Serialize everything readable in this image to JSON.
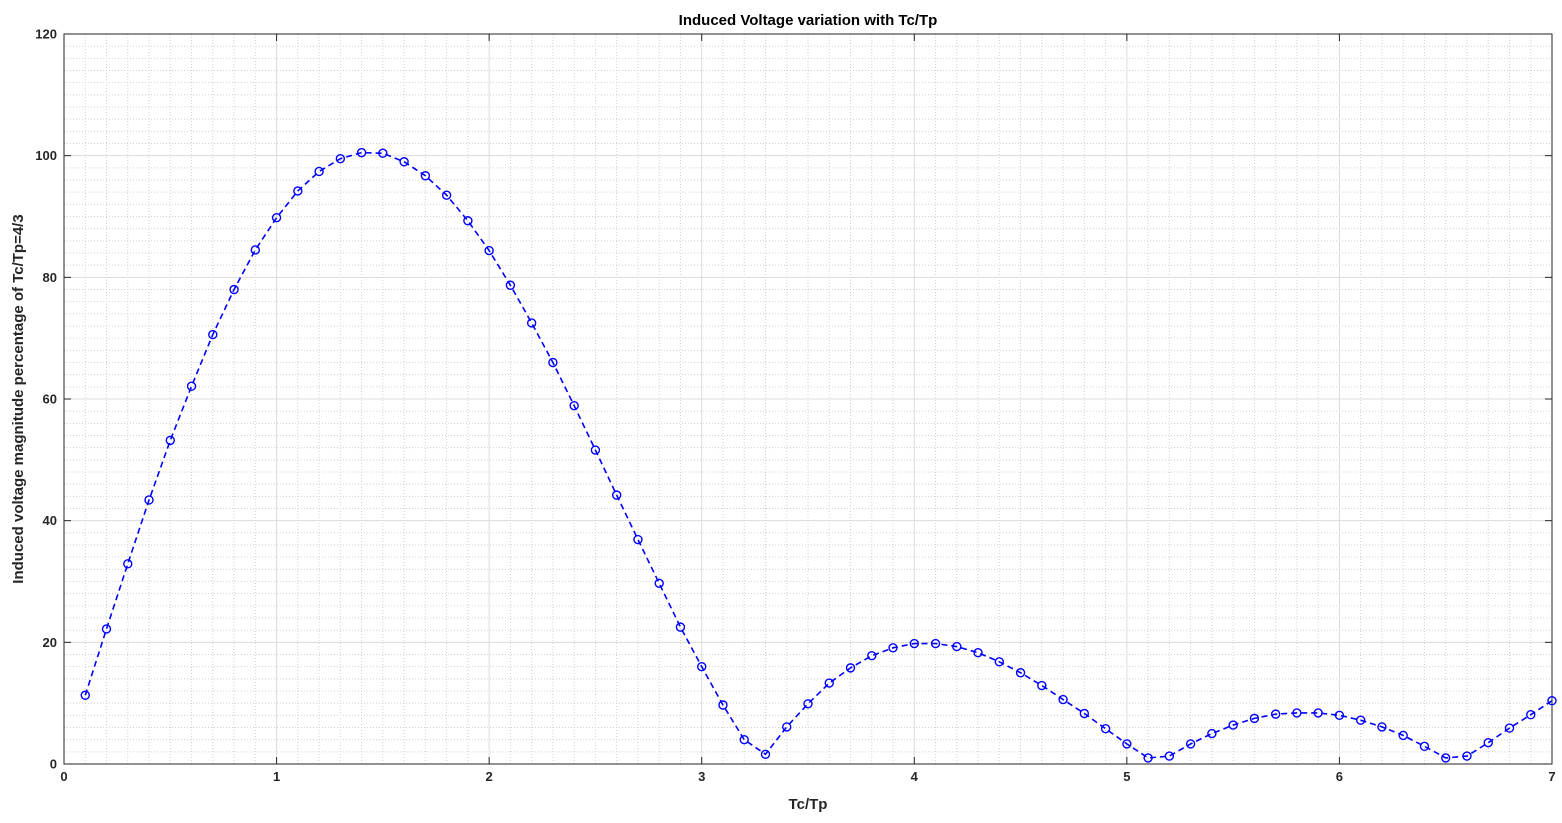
{
  "chart_data": {
    "type": "line",
    "title": "Induced Voltage variation with Tc/Tp",
    "xlabel": "Tc/Tp",
    "ylabel": "Induced voltage magnitude percentage of Tc/Tp=4/3",
    "xlim": [
      0,
      7
    ],
    "ylim": [
      0,
      120
    ],
    "xticks": [
      "0",
      "1",
      "2",
      "3",
      "4",
      "5",
      "6",
      "7"
    ],
    "yticks": [
      "0",
      "20",
      "40",
      "60",
      "80",
      "100",
      "120"
    ],
    "grid": true,
    "minor_grid": true,
    "legend": "none",
    "line_style": "dashed",
    "marker": "circle",
    "color": "#0000ff",
    "series": [
      {
        "x": [
          0.1,
          0.2,
          0.3,
          0.4,
          0.5,
          0.6,
          0.7,
          0.8,
          0.9,
          1.0,
          1.1,
          1.2,
          1.3,
          1.4,
          1.5,
          1.6,
          1.7,
          1.8,
          1.9,
          2.0,
          2.1,
          2.2,
          2.3,
          2.4,
          2.5,
          2.6,
          2.7,
          2.8,
          2.9,
          3.0,
          3.1,
          3.2,
          3.3,
          3.4,
          3.5,
          3.6,
          3.7,
          3.8,
          3.9,
          4.0,
          4.1,
          4.2,
          4.3,
          4.4,
          4.5,
          4.6,
          4.7,
          4.8,
          4.9,
          5.0,
          5.1,
          5.2,
          5.3,
          5.4,
          5.5,
          5.6,
          5.7,
          5.8,
          5.9,
          6.0,
          6.1,
          6.2,
          6.3,
          6.4,
          6.5,
          6.6,
          6.7,
          6.8,
          6.9,
          7.0
        ],
        "y": [
          11.3,
          22.2,
          32.9,
          43.4,
          53.2,
          62.1,
          70.6,
          78.0,
          84.5,
          89.8,
          94.2,
          97.4,
          99.5,
          100.5,
          100.4,
          99.0,
          96.7,
          93.5,
          89.3,
          84.4,
          78.7,
          72.5,
          66.0,
          58.9,
          51.6,
          44.2,
          36.9,
          29.7,
          22.5,
          16.0,
          9.7,
          4.0,
          1.6,
          6.1,
          9.9,
          13.3,
          15.8,
          17.8,
          19.1,
          19.8,
          19.8,
          19.3,
          18.3,
          16.8,
          15.0,
          12.9,
          10.6,
          8.3,
          5.8,
          3.3,
          1.0,
          1.3,
          3.3,
          5.0,
          6.4,
          7.5,
          8.2,
          8.4,
          8.4,
          8.0,
          7.2,
          6.1,
          4.7,
          2.9,
          1.0,
          1.3,
          3.5,
          5.9,
          8.1,
          10.4
        ]
      }
    ]
  }
}
